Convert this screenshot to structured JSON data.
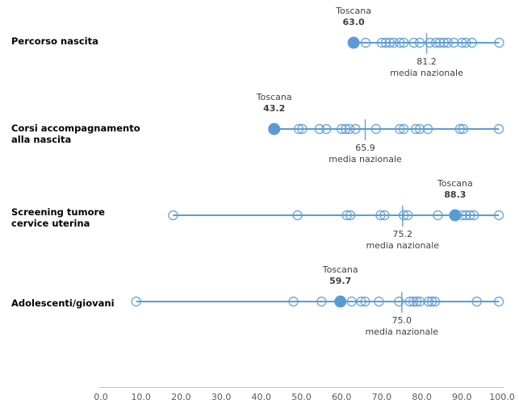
{
  "chart_data": {
    "type": "scatter",
    "subtype": "horizontal-dot-plot",
    "xlabel": "",
    "ylabel": "",
    "xlim": [
      0,
      100
    ],
    "grid": false,
    "legend_position": "none",
    "x_ticks": [
      0,
      10,
      20,
      30,
      40,
      50,
      60,
      70,
      80,
      90,
      100
    ],
    "x_tick_labels": [
      "0.0",
      "10.0",
      "20.0",
      "30.0",
      "40.0",
      "50.0",
      "60.0",
      "70.0",
      "80.0",
      "90.0",
      "100.0"
    ],
    "annotations": {
      "region_label": "Toscana",
      "mean_label": "media nazionale"
    },
    "colors": {
      "series": "#5B9BD5",
      "axis_line": "#BFBFBF",
      "tick_text": "#595959",
      "annotation_text": "#404040",
      "category_text": "#000000"
    },
    "rows": [
      {
        "label": "Percorso nascita",
        "label_lines": [
          "Percorso nascita"
        ],
        "toscana": 63.0,
        "media_nazionale": 81.2,
        "values": [
          66,
          70,
          71,
          72,
          73,
          74.5,
          75.5,
          78,
          79.5,
          82,
          83.5,
          84.5,
          85.5,
          86.5,
          88,
          90,
          91,
          92.5,
          99.3
        ]
      },
      {
        "label": "Corsi accompagnamento alla nascita",
        "label_lines": [
          "Corsi accompagnamento",
          "alla nascita"
        ],
        "toscana": 43.2,
        "media_nazionale": 65.9,
        "values": [
          49.3,
          50.2,
          54.5,
          56.2,
          60,
          61,
          62,
          63.5,
          68.6,
          74.5,
          75.5,
          78.5,
          79.5,
          81.5,
          89.5,
          90.3,
          99.2
        ]
      },
      {
        "label": "Screening tumore cervice uterina",
        "label_lines": [
          "Screening tumore",
          "cervice uterina"
        ],
        "toscana": 88.3,
        "media_nazionale": 75.2,
        "values": [
          18,
          49,
          61.3,
          62.2,
          69.7,
          70.7,
          75.5,
          76.5,
          84,
          90.1,
          91,
          92,
          93,
          99.2
        ]
      },
      {
        "label": "Adolescenti/giovani",
        "label_lines": [
          "Adolescenti/giovani"
        ],
        "toscana": 59.7,
        "media_nazionale": 75.0,
        "values": [
          8.8,
          48,
          55,
          62.5,
          64.9,
          65.9,
          69.3,
          74.3,
          77,
          77.9,
          78.7,
          79.5,
          81.7,
          82.5,
          83.3,
          93.7,
          99.2
        ]
      }
    ]
  }
}
